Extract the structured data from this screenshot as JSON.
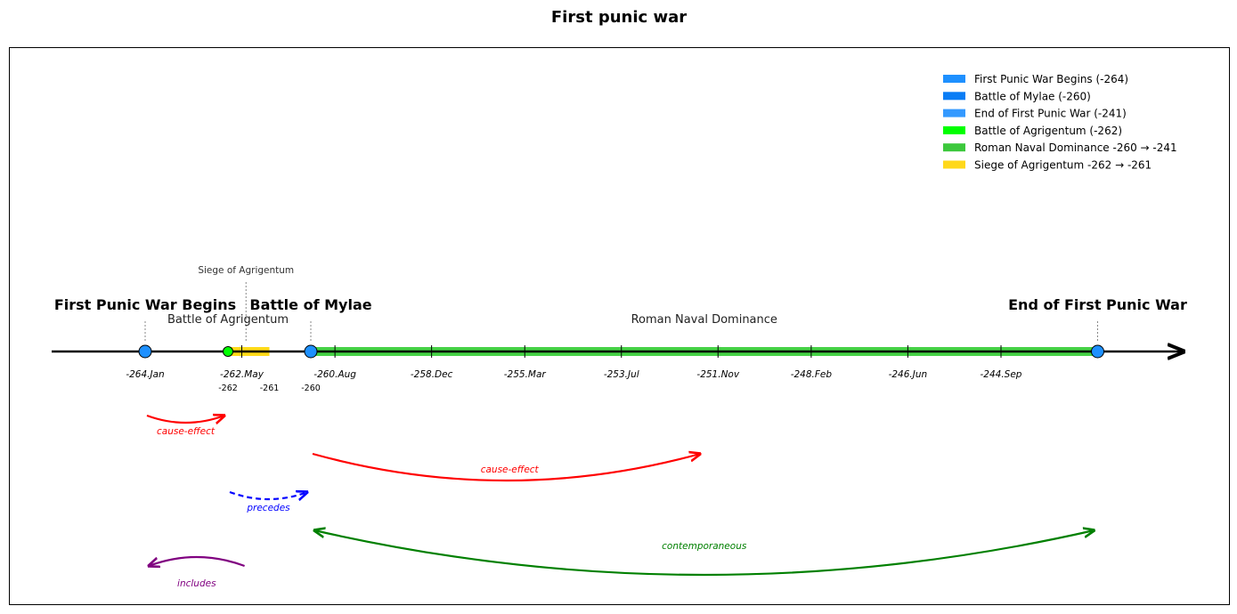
{
  "chart_data": {
    "type": "timeline",
    "title": "First punic war",
    "events": [
      {
        "label": "First Punic War Begins",
        "year": -264,
        "color": "#1E90FF",
        "bold_label": true
      },
      {
        "label": "Battle of Mylae",
        "year": -260,
        "color": "#1E90FF",
        "bold_label": true
      },
      {
        "label": "End of First Punic War",
        "year": -241,
        "color": "#1E90FF",
        "bold_label": true
      },
      {
        "label": "Battle of Agrigentum",
        "year": -262,
        "color": "#00FF00",
        "bold_label": false
      }
    ],
    "periods": [
      {
        "label": "Roman Naval Dominance",
        "start": -260,
        "end": -241,
        "color": "#32CD32"
      },
      {
        "label": "Siege of Agrigentum",
        "start": -262,
        "end": -261,
        "color": "#FFD700"
      }
    ],
    "axis_ticks": [
      "-264.Jan",
      "-262.May",
      "-260.Aug",
      "-258.Dec",
      "-255.Mar",
      "-253.Jul",
      "-251.Nov",
      "-248.Feb",
      "-246.Jun",
      "-244.Sep"
    ],
    "period_ticks": [
      "-262",
      "-261",
      "-260"
    ],
    "relations": [
      {
        "from": "First Punic War Begins",
        "to": "Battle of Agrigentum",
        "type": "cause-effect",
        "color": "#FF0000",
        "dashed": false
      },
      {
        "from": "Battle of Mylae",
        "to": "Roman Naval Dominance",
        "type": "cause-effect",
        "color": "#FF0000",
        "dashed": false
      },
      {
        "from": "Battle of Agrigentum",
        "to": "Battle of Mylae",
        "type": "precedes",
        "color": "#0000FF",
        "dashed": true
      },
      {
        "from": "Battle of Mylae",
        "to": "End of First Punic War",
        "type": "contemporaneous",
        "color": "#008000",
        "dashed": false
      },
      {
        "from": "Siege of Agrigentum",
        "to": "First Punic War Begins",
        "type": "includes",
        "color": "#800080",
        "dashed": false
      }
    ],
    "legend": {
      "placement": "top-right",
      "entries": [
        {
          "label": "First Punic War Begins (-264)",
          "color": "#1E90FF"
        },
        {
          "label": "Battle of Mylae (-260)",
          "color": "#0A7DF5"
        },
        {
          "label": "End of First Punic War (-241)",
          "color": "#3399FF"
        },
        {
          "label": "Battle of Agrigentum (-262)",
          "color": "#00FF00"
        },
        {
          "label": "Roman Naval Dominance  -260 → -241",
          "color": "#3CC83C"
        },
        {
          "label": "Siege of Agrigentum  -262 → -261",
          "color": "#FFD81A"
        }
      ]
    }
  }
}
